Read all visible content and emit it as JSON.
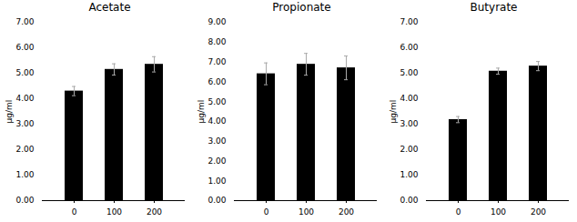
{
  "chart_data": [
    {
      "type": "bar",
      "title": "Acetate",
      "ylabel": "μg/ml",
      "categories": [
        "0",
        "100",
        "200"
      ],
      "values": [
        4.3,
        5.15,
        5.35
      ],
      "errors": [
        0.18,
        0.22,
        0.3
      ],
      "color": "#000000",
      "error_color": "#aaaaaa",
      "grid": false,
      "ylim": [
        0,
        7.0
      ],
      "yticks": [
        {
          "value": 0,
          "label": "0.00"
        },
        {
          "value": 1,
          "label": "1.00"
        },
        {
          "value": 2,
          "label": "2.00"
        },
        {
          "value": 3,
          "label": "3.00"
        },
        {
          "value": 4,
          "label": "4.00"
        },
        {
          "value": 5,
          "label": "5.00"
        },
        {
          "value": 6,
          "label": "6.00"
        },
        {
          "value": 7,
          "label": "7.00"
        }
      ]
    },
    {
      "type": "bar",
      "title": "Propionate",
      "ylabel": "μg/ml",
      "categories": [
        "0",
        "100",
        "200"
      ],
      "values": [
        6.4,
        6.88,
        6.7
      ],
      "errors": [
        0.55,
        0.55,
        0.6
      ],
      "color": "#000000",
      "error_color": "#aaaaaa",
      "grid": false,
      "ylim": [
        0,
        9.0
      ],
      "yticks": [
        {
          "value": 0,
          "label": "0.00"
        },
        {
          "value": 1,
          "label": "1.00"
        },
        {
          "value": 2,
          "label": "2.00"
        },
        {
          "value": 3,
          "label": "3.00"
        },
        {
          "value": 4,
          "label": "4.00"
        },
        {
          "value": 5,
          "label": "5.00"
        },
        {
          "value": 6,
          "label": "6.00"
        },
        {
          "value": 7,
          "label": "7.00"
        },
        {
          "value": 8,
          "label": "8.00"
        },
        {
          "value": 9,
          "label": "9.00"
        }
      ]
    },
    {
      "type": "bar",
      "title": "Butyrate",
      "ylabel": "μg/ml",
      "categories": [
        "0",
        "100",
        "200"
      ],
      "values": [
        3.18,
        5.08,
        5.28
      ],
      "errors": [
        0.12,
        0.12,
        0.18
      ],
      "color": "#000000",
      "error_color": "#aaaaaa",
      "grid": false,
      "ylim": [
        0,
        7.0
      ],
      "yticks": [
        {
          "value": 0,
          "label": "0.00"
        },
        {
          "value": 1,
          "label": "1.00"
        },
        {
          "value": 2,
          "label": "2.00"
        },
        {
          "value": 3,
          "label": "3.00"
        },
        {
          "value": 4,
          "label": "4.00"
        },
        {
          "value": 5,
          "label": "5.00"
        },
        {
          "value": 6,
          "label": "6.00"
        },
        {
          "value": 7,
          "label": "7.00"
        }
      ]
    }
  ]
}
